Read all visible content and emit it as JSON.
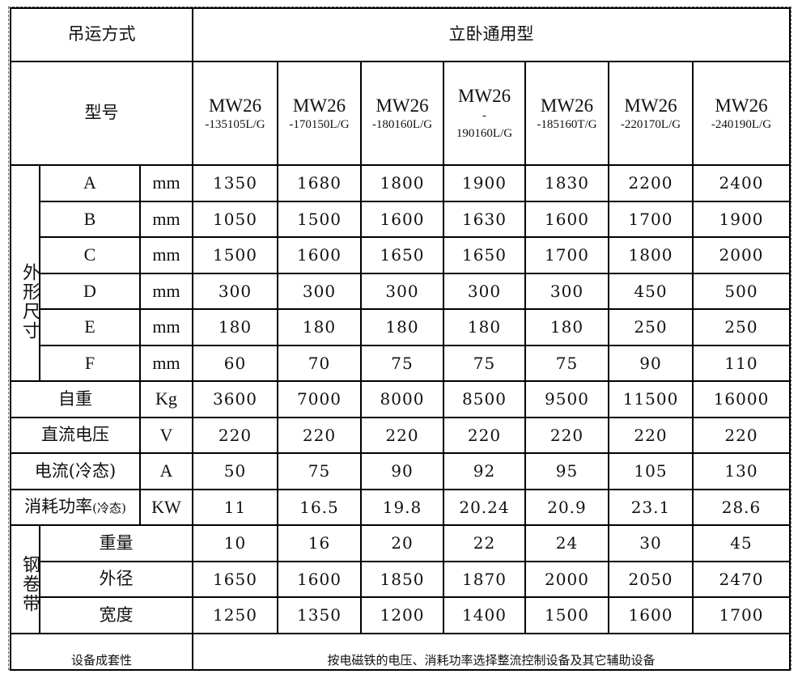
{
  "header": {
    "lift_mode_label": "吊运方式",
    "lift_mode_value": "立卧通用型",
    "model_label": "型号"
  },
  "models": [
    {
      "name": "MW26",
      "code": "-135105L/G"
    },
    {
      "name": "MW26",
      "code": "-170150L/G"
    },
    {
      "name": "MW26",
      "code": "-180160L/G"
    },
    {
      "name": "MW26",
      "code": "-\n190160L/G",
      "dash": "-",
      "code2": "190160L/G"
    },
    {
      "name": "MW26",
      "code": "-185160T/G"
    },
    {
      "name": "MW26",
      "code": "-220170L/G"
    },
    {
      "name": "MW26",
      "code": "-240190L/G"
    }
  ],
  "dimensions": {
    "group_label": "外形尺寸",
    "rows": [
      {
        "label": "A",
        "unit": "mm",
        "values": [
          "1350",
          "1680",
          "1800",
          "1900",
          "1830",
          "2200",
          "2400"
        ]
      },
      {
        "label": "B",
        "unit": "mm",
        "values": [
          "1050",
          "1500",
          "1600",
          "1630",
          "1600",
          "1700",
          "1900"
        ]
      },
      {
        "label": "C",
        "unit": "mm",
        "values": [
          "1500",
          "1600",
          "1650",
          "1650",
          "1700",
          "1800",
          "2000"
        ]
      },
      {
        "label": "D",
        "unit": "mm",
        "values": [
          "300",
          "300",
          "300",
          "300",
          "300",
          "450",
          "500"
        ]
      },
      {
        "label": "E",
        "unit": "mm",
        "values": [
          "180",
          "180",
          "180",
          "180",
          "180",
          "250",
          "250"
        ]
      },
      {
        "label": "F",
        "unit": "mm",
        "values": [
          "60",
          "70",
          "75",
          "75",
          "75",
          "90",
          "110"
        ]
      }
    ]
  },
  "specs": [
    {
      "label": "自重",
      "unit": "Kg",
      "values": [
        "3600",
        "7000",
        "8000",
        "8500",
        "9500",
        "11500",
        "16000"
      ]
    },
    {
      "label": "直流电压",
      "unit": "V",
      "values": [
        "220",
        "220",
        "220",
        "220",
        "220",
        "220",
        "220"
      ]
    },
    {
      "label": "电流(冷态)",
      "unit": "A",
      "values": [
        "50",
        "75",
        "90",
        "92",
        "95",
        "105",
        "130"
      ]
    },
    {
      "label": "消耗功率",
      "label_note": "(冷态)",
      "unit": "KW",
      "values": [
        "11",
        "16.5",
        "19.8",
        "20.24",
        "20.9",
        "23.1",
        "28.6"
      ]
    }
  ],
  "coil": {
    "group_label": "钢卷带",
    "rows": [
      {
        "label": "重量",
        "values": [
          "10",
          "16",
          "20",
          "22",
          "24",
          "30",
          "45"
        ]
      },
      {
        "label": "外径",
        "values": [
          "1650",
          "1600",
          "1850",
          "1870",
          "2000",
          "2050",
          "2470"
        ]
      },
      {
        "label": "宽度",
        "values": [
          "1250",
          "1350",
          "1200",
          "1400",
          "1500",
          "1600",
          "1700"
        ]
      }
    ]
  },
  "footer": {
    "label": "设备成套性",
    "value": "按电磁铁的电压、消耗功率选择整流控制设备及其它辅助设备"
  }
}
